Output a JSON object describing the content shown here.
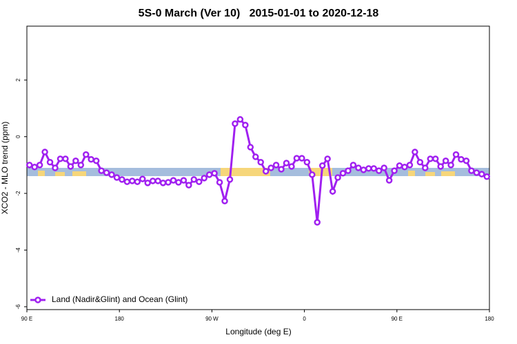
{
  "chart_data": {
    "type": "line",
    "title": "5S-0 March (Ver 10)   2015-01-01 to 2020-12-18",
    "x_label": "Longitude (deg E)",
    "y_label": "XCO2 - MLO trend (ppm)",
    "x": [
      92.5,
      97.5,
      102.5,
      107.5,
      112.5,
      117.5,
      122.5,
      127.5,
      132.5,
      137.5,
      142.5,
      147.5,
      152.5,
      157.5,
      162.5,
      167.5,
      172.5,
      177.5,
      182.5,
      187.5,
      192.5,
      197.5,
      202.5,
      207.5,
      212.5,
      217.5,
      222.5,
      227.5,
      232.5,
      237.5,
      242.5,
      247.5,
      252.5,
      257.5,
      262.5,
      267.5,
      272.5,
      277.5,
      282.5,
      287.5,
      292.5,
      297.5,
      302.5,
      307.5,
      312.5,
      317.5,
      322.5,
      327.5,
      332.5,
      337.5,
      342.5,
      347.5,
      352.5,
      357.5,
      362.5,
      367.5,
      372.5,
      377.5,
      382.5,
      387.5,
      392.5,
      397.5,
      402.5,
      407.5,
      412.5,
      417.5,
      422.5,
      427.5,
      432.5,
      437.5,
      442.5,
      447.5,
      452.5,
      457.5,
      462.5,
      467.5,
      472.5,
      477.5,
      482.5,
      487.5,
      492.5,
      497.5,
      502.5,
      507.5,
      512.5,
      517.5,
      522.5,
      527.5,
      532.5,
      537.5
    ],
    "series": [
      {
        "name": "Land (Nadir&Glint) and Ocean (Glint)",
        "color": "#a020f0",
        "values": [
          -1.0,
          -1.07,
          -1.0,
          -0.54,
          -0.9,
          -1.1,
          -0.78,
          -0.78,
          -1.05,
          -0.85,
          -1.0,
          -0.63,
          -0.8,
          -0.85,
          -1.2,
          -1.27,
          -1.34,
          -1.44,
          -1.51,
          -1.59,
          -1.56,
          -1.59,
          -1.49,
          -1.63,
          -1.56,
          -1.56,
          -1.63,
          -1.61,
          -1.54,
          -1.61,
          -1.54,
          -1.71,
          -1.51,
          -1.59,
          -1.46,
          -1.34,
          -1.29,
          -1.61,
          -2.27,
          -1.51,
          0.46,
          0.61,
          0.41,
          -0.37,
          -0.71,
          -0.9,
          -1.22,
          -1.1,
          -1.0,
          -1.15,
          -0.93,
          -1.05,
          -0.76,
          -0.76,
          -0.9,
          -1.34,
          -3.02,
          -1.02,
          -0.78,
          -1.93,
          -1.44,
          -1.29,
          -1.2,
          -1.0,
          -1.1,
          -1.17,
          -1.12,
          -1.12,
          -1.2,
          -1.1,
          -1.54,
          -1.2,
          -1.02,
          -1.07,
          -1.0,
          -0.54,
          -0.9,
          -1.1,
          -0.78,
          -0.78,
          -1.05,
          -0.85,
          -1.0,
          -0.63,
          -0.8,
          -0.85,
          -1.2,
          -1.27,
          -1.32,
          -1.41
        ]
      }
    ],
    "xlim": [
      90,
      540
    ],
    "xticks": [
      {
        "value": 90,
        "label": "90 E"
      },
      180,
      {
        "value": 270,
        "label": "90 W"
      },
      {
        "value": 360,
        "label": "0"
      },
      {
        "value": 450,
        "label": "90 E"
      },
      {
        "value": 540,
        "label": "180"
      }
    ],
    "ylim": [
      -6.1,
      3.9
    ],
    "yticks": [
      -6,
      -4,
      -2,
      0,
      2
    ],
    "legend": "bottom-left"
  }
}
